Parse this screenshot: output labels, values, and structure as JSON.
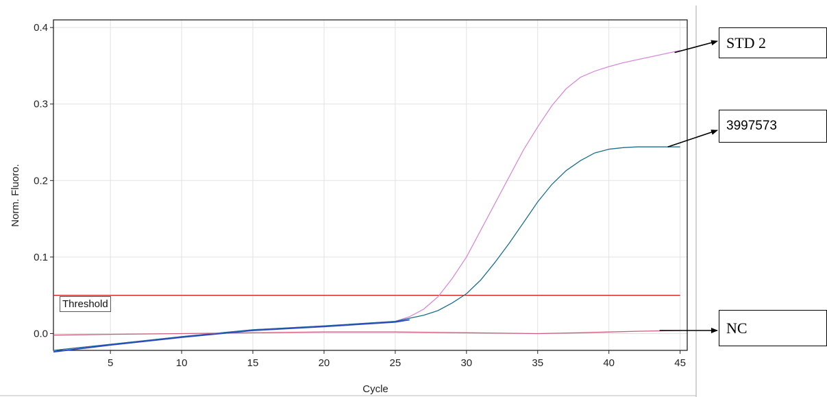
{
  "chart_data": {
    "type": "line",
    "xlabel": "Cycle",
    "ylabel": "Norm. Fluoro.",
    "xlim": [
      1,
      45.5
    ],
    "ylim": [
      -0.022,
      0.41
    ],
    "xticks": [
      5,
      10,
      15,
      20,
      25,
      30,
      35,
      40,
      45
    ],
    "yticks": [
      0.0,
      0.1,
      0.2,
      0.3,
      0.4
    ],
    "ytick_labels": [
      "0.0",
      "0.1",
      "0.2",
      "0.3",
      "0.4"
    ],
    "grid": true,
    "threshold": {
      "label": "Threshold",
      "value": 0.05,
      "color": "#cc2222"
    },
    "series": [
      {
        "name": "STD 2",
        "color": "#d88ad8",
        "x": [
          1,
          5,
          10,
          15,
          20,
          25,
          26,
          27,
          28,
          29,
          30,
          31,
          32,
          33,
          34,
          35,
          36,
          37,
          38,
          39,
          40,
          41,
          42,
          43,
          44,
          45
        ],
        "y": [
          -0.022,
          -0.014,
          -0.004,
          0.005,
          0.01,
          0.016,
          0.022,
          0.032,
          0.048,
          0.072,
          0.1,
          0.135,
          0.17,
          0.205,
          0.24,
          0.27,
          0.298,
          0.32,
          0.335,
          0.343,
          0.349,
          0.354,
          0.358,
          0.362,
          0.366,
          0.37
        ]
      },
      {
        "name": "3997573",
        "color": "#1a6e8c",
        "x": [
          1,
          5,
          10,
          15,
          20,
          25,
          26,
          27,
          28,
          29,
          30,
          31,
          32,
          33,
          34,
          35,
          36,
          37,
          38,
          39,
          40,
          41,
          42,
          43,
          44,
          45
        ],
        "y": [
          -0.022,
          -0.014,
          -0.004,
          0.005,
          0.01,
          0.016,
          0.02,
          0.024,
          0.03,
          0.04,
          0.052,
          0.07,
          0.093,
          0.118,
          0.145,
          0.172,
          0.195,
          0.213,
          0.226,
          0.236,
          0.241,
          0.243,
          0.244,
          0.244,
          0.244,
          0.244
        ]
      },
      {
        "name": "NC",
        "color": "#d05a7a",
        "x": [
          1,
          5,
          10,
          15,
          20,
          25,
          30,
          35,
          38,
          40,
          42,
          45
        ],
        "y": [
          -0.002,
          -0.001,
          0.0,
          0.001,
          0.002,
          0.002,
          0.001,
          0.0,
          0.001,
          0.002,
          0.003,
          0.004
        ]
      },
      {
        "name": "",
        "color": "#2c48c8",
        "x": [
          1,
          5,
          10,
          15,
          20,
          25,
          26
        ],
        "y": [
          -0.024,
          -0.015,
          -0.005,
          0.004,
          0.009,
          0.015,
          0.018
        ]
      }
    ]
  },
  "callouts": [
    {
      "label": "STD 2",
      "style": "serif"
    },
    {
      "label": "3997573",
      "style": "sans"
    },
    {
      "label": "NC",
      "style": "serif"
    }
  ]
}
